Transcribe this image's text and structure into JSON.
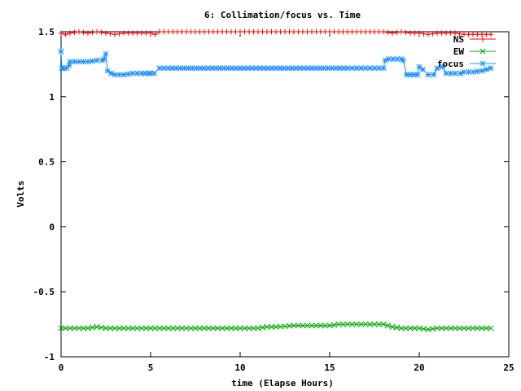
{
  "chart_data": {
    "type": "line",
    "title": "6: Collimation/focus vs. Time",
    "xlabel": "time (Elapse Hours)",
    "ylabel": "Volts",
    "xlim": [
      0,
      25
    ],
    "ylim": [
      -1,
      1.5
    ],
    "xticks": [
      0,
      5,
      10,
      15,
      20,
      25
    ],
    "xtick_labels": [
      "0",
      "5",
      "10",
      "15",
      "20",
      "25"
    ],
    "yticks": [
      -1,
      -0.5,
      0,
      0.5,
      1,
      1.5
    ],
    "ytick_labels": [
      "-1",
      "-0.5",
      "0",
      "0.5",
      "1",
      "1.5"
    ],
    "grid": false,
    "legend_position": "top-right",
    "series": [
      {
        "name": "NS",
        "color": "#ff0000",
        "marker": "plus",
        "x": [
          0,
          0.25,
          0.5,
          1,
          1.5,
          2,
          2.5,
          3,
          3.5,
          4,
          4.5,
          5,
          5.25,
          5.5,
          6,
          7,
          8,
          9,
          10,
          11,
          12,
          13,
          14,
          15,
          16,
          17,
          18,
          18.5,
          19,
          19.5,
          20,
          20.5,
          21,
          21.5,
          22,
          22.5,
          23,
          23.5,
          24
        ],
        "values": [
          1.49,
          1.48,
          1.49,
          1.5,
          1.49,
          1.5,
          1.49,
          1.48,
          1.49,
          1.49,
          1.49,
          1.49,
          1.48,
          1.5,
          1.5,
          1.5,
          1.5,
          1.5,
          1.5,
          1.5,
          1.5,
          1.5,
          1.5,
          1.5,
          1.5,
          1.5,
          1.5,
          1.49,
          1.5,
          1.49,
          1.49,
          1.48,
          1.49,
          1.49,
          1.49,
          1.48,
          1.48,
          1.48,
          1.48
        ]
      },
      {
        "name": "EW",
        "color": "#00aa00",
        "marker": "cross",
        "x": [
          0,
          0.5,
          1,
          1.5,
          2,
          2.5,
          3,
          3.5,
          4,
          4.5,
          5,
          5.5,
          6,
          7,
          8,
          9,
          10,
          11,
          11.5,
          12,
          13,
          14,
          15,
          15.5,
          16,
          17,
          17.5,
          18,
          18.5,
          19,
          19.5,
          20,
          20.5,
          21,
          22,
          23,
          24
        ],
        "values": [
          -0.78,
          -0.78,
          -0.78,
          -0.78,
          -0.77,
          -0.78,
          -0.78,
          -0.78,
          -0.78,
          -0.78,
          -0.78,
          -0.78,
          -0.78,
          -0.78,
          -0.78,
          -0.78,
          -0.78,
          -0.78,
          -0.77,
          -0.77,
          -0.76,
          -0.76,
          -0.76,
          -0.75,
          -0.75,
          -0.75,
          -0.75,
          -0.75,
          -0.77,
          -0.78,
          -0.78,
          -0.78,
          -0.79,
          -0.78,
          -0.78,
          -0.78,
          -0.78
        ]
      },
      {
        "name": "focus",
        "color": "#1e90ff",
        "marker": "star",
        "x": [
          0,
          0.05,
          0.1,
          0.3,
          0.45,
          0.5,
          1,
          1.5,
          2,
          2.3,
          2.4,
          2.5,
          2.6,
          2.8,
          3,
          3.5,
          4,
          4.5,
          4.9,
          5,
          5.2,
          5.5,
          6,
          8,
          10,
          12,
          14,
          16,
          17,
          18,
          18.1,
          18.3,
          19,
          19.1,
          19.3,
          19.5,
          19.9,
          20,
          20.2,
          20.5,
          20.8,
          21,
          21.3,
          21.5,
          22,
          22.3,
          22.5,
          23,
          23.5,
          24
        ],
        "values": [
          1.35,
          1.22,
          1.22,
          1.22,
          1.24,
          1.27,
          1.27,
          1.27,
          1.28,
          1.28,
          1.29,
          1.33,
          1.2,
          1.18,
          1.17,
          1.17,
          1.18,
          1.18,
          1.18,
          1.18,
          1.18,
          1.22,
          1.22,
          1.22,
          1.22,
          1.22,
          1.22,
          1.22,
          1.22,
          1.22,
          1.28,
          1.29,
          1.29,
          1.28,
          1.17,
          1.17,
          1.17,
          1.23,
          1.21,
          1.17,
          1.17,
          1.22,
          1.23,
          1.18,
          1.18,
          1.18,
          1.19,
          1.19,
          1.2,
          1.22
        ]
      }
    ]
  }
}
